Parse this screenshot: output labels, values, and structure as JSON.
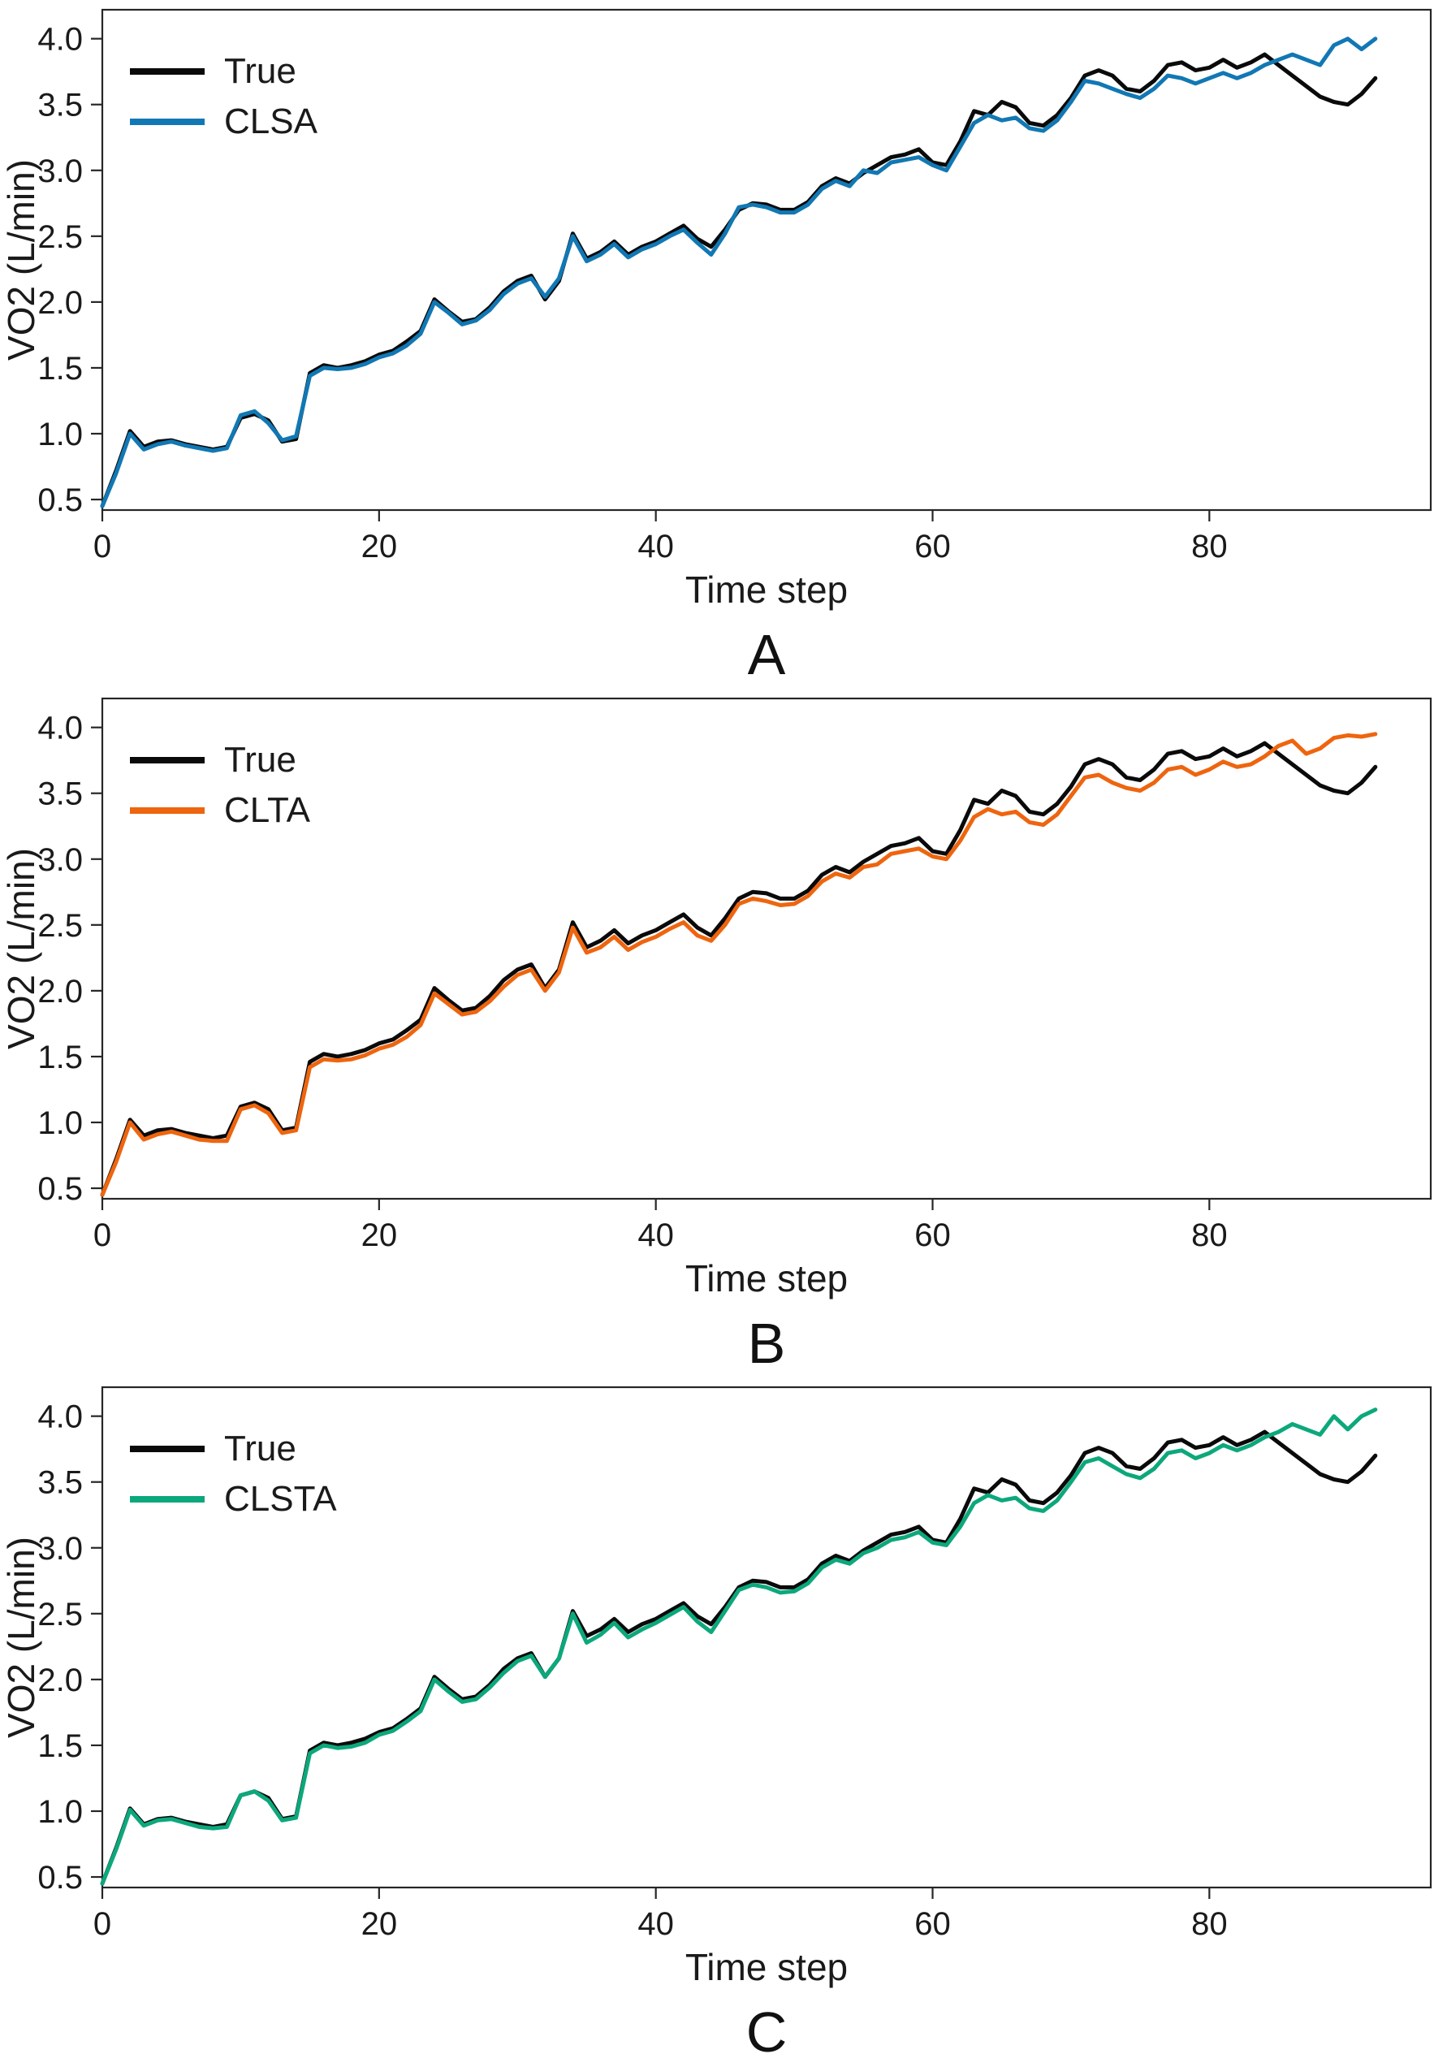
{
  "figure": {
    "background": "#ffffff"
  },
  "chart_data": [
    {
      "type": "line",
      "caption": "A",
      "title": "",
      "xlabel": "Time step",
      "ylabel": "VO2 (L/min)",
      "xlim": [
        0,
        96
      ],
      "ylim": [
        0.42,
        4.22
      ],
      "x_ticks": [
        0,
        20,
        40,
        60,
        80
      ],
      "x_tick_labels": [
        "0",
        "20",
        "40",
        "60",
        "80"
      ],
      "y_ticks": [
        0.5,
        1.0,
        1.5,
        2.0,
        2.5,
        3.0,
        3.5,
        4.0
      ],
      "y_tick_labels": [
        "0.5",
        "1.0",
        "1.5",
        "2.0",
        "2.5",
        "3.0",
        "3.5",
        "4.0"
      ],
      "grid": false,
      "legend_position": "upper left",
      "x_start": 0,
      "x_step": 1,
      "series": [
        {
          "name": "True",
          "color": "#0a0a0a",
          "values": [
            0.45,
            0.72,
            1.02,
            0.9,
            0.94,
            0.95,
            0.92,
            0.9,
            0.88,
            0.9,
            1.12,
            1.15,
            1.1,
            0.94,
            0.96,
            1.46,
            1.52,
            1.5,
            1.52,
            1.55,
            1.6,
            1.63,
            1.7,
            1.78,
            2.02,
            1.93,
            1.85,
            1.87,
            1.96,
            2.08,
            2.16,
            2.2,
            2.02,
            2.16,
            2.52,
            2.33,
            2.38,
            2.46,
            2.36,
            2.42,
            2.46,
            2.52,
            2.58,
            2.48,
            2.42,
            2.55,
            2.7,
            2.75,
            2.74,
            2.7,
            2.7,
            2.76,
            2.88,
            2.94,
            2.9,
            2.98,
            3.04,
            3.1,
            3.12,
            3.16,
            3.06,
            3.04,
            3.22,
            3.45,
            3.42,
            3.52,
            3.48,
            3.36,
            3.34,
            3.42,
            3.55,
            3.72,
            3.76,
            3.72,
            3.62,
            3.6,
            3.68,
            3.8,
            3.82,
            3.76,
            3.78,
            3.84,
            3.78,
            3.82,
            3.88,
            3.8,
            3.72,
            3.64,
            3.56,
            3.52,
            3.5,
            3.58,
            3.7
          ]
        },
        {
          "name": "CLSA",
          "color": "#1178b4",
          "values": [
            0.45,
            0.7,
            1.0,
            0.88,
            0.92,
            0.94,
            0.91,
            0.89,
            0.87,
            0.89,
            1.14,
            1.17,
            1.08,
            0.95,
            0.98,
            1.44,
            1.5,
            1.49,
            1.5,
            1.53,
            1.58,
            1.61,
            1.67,
            1.76,
            2.0,
            1.92,
            1.83,
            1.86,
            1.94,
            2.06,
            2.14,
            2.18,
            2.04,
            2.18,
            2.5,
            2.31,
            2.36,
            2.44,
            2.34,
            2.4,
            2.44,
            2.5,
            2.55,
            2.45,
            2.36,
            2.52,
            2.72,
            2.74,
            2.72,
            2.68,
            2.68,
            2.74,
            2.86,
            2.92,
            2.88,
            3.0,
            2.98,
            3.06,
            3.08,
            3.1,
            3.04,
            3.0,
            3.18,
            3.36,
            3.42,
            3.38,
            3.4,
            3.32,
            3.3,
            3.38,
            3.52,
            3.68,
            3.66,
            3.62,
            3.58,
            3.55,
            3.62,
            3.72,
            3.7,
            3.66,
            3.7,
            3.74,
            3.7,
            3.74,
            3.8,
            3.84,
            3.88,
            3.84,
            3.8,
            3.95,
            4.0,
            3.92,
            4.0
          ]
        }
      ]
    },
    {
      "type": "line",
      "caption": "B",
      "title": "",
      "xlabel": "Time step",
      "ylabel": "VO2 (L/min)",
      "xlim": [
        0,
        96
      ],
      "ylim": [
        0.42,
        4.22
      ],
      "x_ticks": [
        0,
        20,
        40,
        60,
        80
      ],
      "x_tick_labels": [
        "0",
        "20",
        "40",
        "60",
        "80"
      ],
      "y_ticks": [
        0.5,
        1.0,
        1.5,
        2.0,
        2.5,
        3.0,
        3.5,
        4.0
      ],
      "y_tick_labels": [
        "0.5",
        "1.0",
        "1.5",
        "2.0",
        "2.5",
        "3.0",
        "3.5",
        "4.0"
      ],
      "grid": false,
      "legend_position": "upper left",
      "x_start": 0,
      "x_step": 1,
      "series": [
        {
          "name": "True",
          "color": "#0a0a0a",
          "values": [
            0.45,
            0.72,
            1.02,
            0.9,
            0.94,
            0.95,
            0.92,
            0.9,
            0.88,
            0.9,
            1.12,
            1.15,
            1.1,
            0.94,
            0.96,
            1.46,
            1.52,
            1.5,
            1.52,
            1.55,
            1.6,
            1.63,
            1.7,
            1.78,
            2.02,
            1.93,
            1.85,
            1.87,
            1.96,
            2.08,
            2.16,
            2.2,
            2.02,
            2.16,
            2.52,
            2.33,
            2.38,
            2.46,
            2.36,
            2.42,
            2.46,
            2.52,
            2.58,
            2.48,
            2.42,
            2.55,
            2.7,
            2.75,
            2.74,
            2.7,
            2.7,
            2.76,
            2.88,
            2.94,
            2.9,
            2.98,
            3.04,
            3.1,
            3.12,
            3.16,
            3.06,
            3.04,
            3.22,
            3.45,
            3.42,
            3.52,
            3.48,
            3.36,
            3.34,
            3.42,
            3.55,
            3.72,
            3.76,
            3.72,
            3.62,
            3.6,
            3.68,
            3.8,
            3.82,
            3.76,
            3.78,
            3.84,
            3.78,
            3.82,
            3.88,
            3.8,
            3.72,
            3.64,
            3.56,
            3.52,
            3.5,
            3.58,
            3.7
          ]
        },
        {
          "name": "CLTA",
          "color": "#ee650f",
          "values": [
            0.45,
            0.7,
            1.0,
            0.87,
            0.91,
            0.93,
            0.9,
            0.87,
            0.86,
            0.86,
            1.1,
            1.13,
            1.07,
            0.92,
            0.94,
            1.42,
            1.48,
            1.47,
            1.48,
            1.51,
            1.56,
            1.59,
            1.65,
            1.74,
            1.98,
            1.9,
            1.82,
            1.84,
            1.92,
            2.03,
            2.12,
            2.16,
            2.0,
            2.14,
            2.48,
            2.29,
            2.33,
            2.41,
            2.31,
            2.37,
            2.41,
            2.47,
            2.52,
            2.42,
            2.38,
            2.5,
            2.66,
            2.7,
            2.68,
            2.65,
            2.66,
            2.72,
            2.83,
            2.89,
            2.86,
            2.94,
            2.96,
            3.04,
            3.06,
            3.08,
            3.02,
            3.0,
            3.14,
            3.32,
            3.38,
            3.34,
            3.36,
            3.28,
            3.26,
            3.34,
            3.48,
            3.62,
            3.64,
            3.58,
            3.54,
            3.52,
            3.58,
            3.68,
            3.7,
            3.64,
            3.68,
            3.74,
            3.7,
            3.72,
            3.78,
            3.86,
            3.9,
            3.8,
            3.84,
            3.92,
            3.94,
            3.93,
            3.95
          ]
        }
      ]
    },
    {
      "type": "line",
      "caption": "C",
      "title": "",
      "xlabel": "Time step",
      "ylabel": "VO2 (L/min)",
      "xlim": [
        0,
        96
      ],
      "ylim": [
        0.42,
        4.22
      ],
      "x_ticks": [
        0,
        20,
        40,
        60,
        80
      ],
      "x_tick_labels": [
        "0",
        "20",
        "40",
        "60",
        "80"
      ],
      "y_ticks": [
        0.5,
        1.0,
        1.5,
        2.0,
        2.5,
        3.0,
        3.5,
        4.0
      ],
      "y_tick_labels": [
        "0.5",
        "1.0",
        "1.5",
        "2.0",
        "2.5",
        "3.0",
        "3.5",
        "4.0"
      ],
      "grid": false,
      "legend_position": "upper left",
      "x_start": 0,
      "x_step": 1,
      "series": [
        {
          "name": "True",
          "color": "#0a0a0a",
          "values": [
            0.45,
            0.72,
            1.02,
            0.9,
            0.94,
            0.95,
            0.92,
            0.9,
            0.88,
            0.9,
            1.12,
            1.15,
            1.1,
            0.94,
            0.96,
            1.46,
            1.52,
            1.5,
            1.52,
            1.55,
            1.6,
            1.63,
            1.7,
            1.78,
            2.02,
            1.93,
            1.85,
            1.87,
            1.96,
            2.08,
            2.16,
            2.2,
            2.02,
            2.16,
            2.52,
            2.33,
            2.38,
            2.46,
            2.36,
            2.42,
            2.46,
            2.52,
            2.58,
            2.48,
            2.42,
            2.55,
            2.7,
            2.75,
            2.74,
            2.7,
            2.7,
            2.76,
            2.88,
            2.94,
            2.9,
            2.98,
            3.04,
            3.1,
            3.12,
            3.16,
            3.06,
            3.04,
            3.22,
            3.45,
            3.42,
            3.52,
            3.48,
            3.36,
            3.34,
            3.42,
            3.55,
            3.72,
            3.76,
            3.72,
            3.62,
            3.6,
            3.68,
            3.8,
            3.82,
            3.76,
            3.78,
            3.84,
            3.78,
            3.82,
            3.88,
            3.8,
            3.72,
            3.64,
            3.56,
            3.52,
            3.5,
            3.58,
            3.7
          ]
        },
        {
          "name": "CLSTA",
          "color": "#0ca87c",
          "values": [
            0.45,
            0.71,
            1.01,
            0.89,
            0.93,
            0.94,
            0.91,
            0.88,
            0.87,
            0.88,
            1.12,
            1.15,
            1.08,
            0.93,
            0.95,
            1.44,
            1.5,
            1.48,
            1.49,
            1.52,
            1.58,
            1.61,
            1.68,
            1.76,
            2.0,
            1.91,
            1.83,
            1.85,
            1.94,
            2.05,
            2.14,
            2.18,
            2.02,
            2.16,
            2.5,
            2.28,
            2.34,
            2.43,
            2.32,
            2.38,
            2.43,
            2.49,
            2.55,
            2.44,
            2.36,
            2.52,
            2.68,
            2.72,
            2.7,
            2.66,
            2.67,
            2.73,
            2.85,
            2.91,
            2.88,
            2.96,
            3.0,
            3.06,
            3.08,
            3.12,
            3.04,
            3.02,
            3.16,
            3.34,
            3.4,
            3.36,
            3.38,
            3.3,
            3.28,
            3.36,
            3.5,
            3.65,
            3.68,
            3.62,
            3.56,
            3.53,
            3.6,
            3.72,
            3.74,
            3.68,
            3.72,
            3.78,
            3.74,
            3.78,
            3.84,
            3.88,
            3.94,
            3.9,
            3.86,
            4.0,
            3.9,
            4.0,
            4.05
          ]
        }
      ]
    }
  ]
}
